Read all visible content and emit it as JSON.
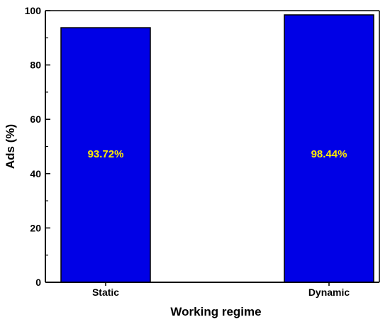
{
  "chart_data": {
    "type": "bar",
    "categories": [
      "Static",
      "Dynamic"
    ],
    "values": [
      93.72,
      98.44
    ],
    "data_labels": [
      "93.72%",
      "98.44%"
    ],
    "xlabel": "Working regime",
    "ylabel": "Ads (%)",
    "ylim": [
      0,
      100
    ],
    "yticks": [
      0,
      20,
      40,
      60,
      80,
      100
    ],
    "ytick_labels": [
      "0",
      "20",
      "40",
      "60",
      "80",
      "100"
    ],
    "grid": false,
    "legend": "none",
    "colors": {
      "bar_fill": "#0000e6",
      "bar_stroke": "#000000",
      "data_label": "#ffeb00",
      "axis": "#000000"
    }
  }
}
